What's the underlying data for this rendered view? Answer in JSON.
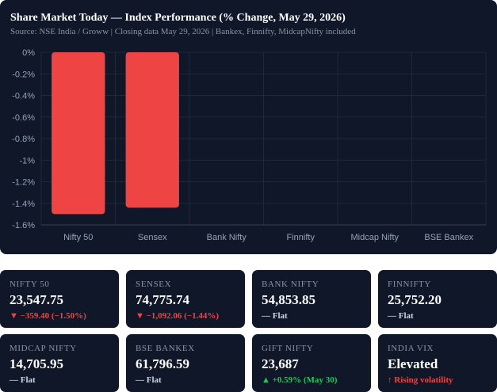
{
  "header": {
    "title": "Share Market Today — Index Performance (% Change, May 29, 2026)",
    "subtitle": "Source: NSE India / Groww | Closing data May 29, 2026 | Bankex, Finnifty, MidcapNifty included"
  },
  "chart_data": {
    "type": "bar",
    "categories": [
      "Nifty 50",
      "Sensex",
      "Bank Nifty",
      "Finnifty",
      "Midcap Nifty",
      "BSE Bankex"
    ],
    "values": [
      -1.5,
      -1.44,
      0,
      0,
      0,
      0
    ],
    "ylim": [
      -1.6,
      0
    ],
    "yticks": [
      0,
      -0.2,
      -0.4,
      -0.6,
      -0.8,
      -1,
      -1.2,
      -1.4,
      -1.6
    ],
    "ytick_labels": [
      "0%",
      "-0.2%",
      "-0.4%",
      "-0.6%",
      "-0.8%",
      "-1%",
      "-1.2%",
      "-1.4%",
      "-1.6%"
    ],
    "bar_color": "#ef4444",
    "grid": true,
    "legend": "none"
  },
  "cards": [
    {
      "label": "NIFTY 50",
      "value": "23,547.75",
      "change": "▼ −359.40 (−1.50%)",
      "trend": "down"
    },
    {
      "label": "SENSEX",
      "value": "74,775.74",
      "change": "▼ −1,092.06 (−1.44%)",
      "trend": "down"
    },
    {
      "label": "BANK NIFTY",
      "value": "54,853.85",
      "change": "— Flat",
      "trend": "flat"
    },
    {
      "label": "FINNIFTY",
      "value": "25,752.20",
      "change": "— Flat",
      "trend": "flat"
    },
    {
      "label": "MIDCAP NIFTY",
      "value": "14,705.95",
      "change": "— Flat",
      "trend": "flat"
    },
    {
      "label": "BSE BANKEX",
      "value": "61,796.59",
      "change": "— Flat",
      "trend": "flat"
    },
    {
      "label": "GIFT NIFTY",
      "value": "23,687",
      "change": "▲ +0.59% (May 30)",
      "trend": "up"
    },
    {
      "label": "INDIA VIX",
      "value": "Elevated",
      "change": "↑ Rising volatility",
      "trend": "down"
    }
  ],
  "colors": {
    "panel": "#0f1729",
    "down": "#ef4444",
    "up": "#22c55e",
    "flat": "#cbd5e1"
  }
}
